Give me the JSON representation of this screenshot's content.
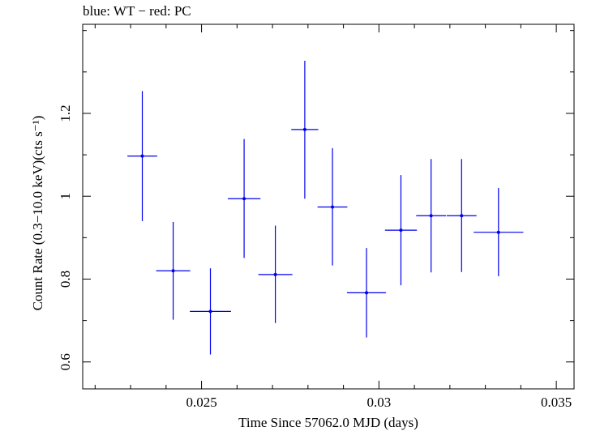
{
  "chart_data": {
    "type": "scatter",
    "title": "blue: WT − red: PC",
    "xlabel": "Time Since 57062.0 MJD (days)",
    "ylabel": "Count Rate (0.3−10.0 keV)(cts s⁻¹)",
    "xlim": [
      0.02165,
      0.0355
    ],
    "ylim": [
      0.535,
      1.415
    ],
    "x_major_ticks": [
      0.025,
      0.03,
      0.035
    ],
    "x_tick_labels": [
      "0.025",
      "0.03",
      "0.035"
    ],
    "y_major_ticks": [
      0.6,
      0.8,
      1.0,
      1.2
    ],
    "y_tick_labels": [
      "0.6",
      "0.8",
      "1",
      "1.2"
    ],
    "grid": false,
    "series": [
      {
        "color": "#0000ee",
        "points": [
          {
            "x": 0.02333,
            "xerr": 0.00042,
            "y": 1.097,
            "ylo": 0.94,
            "yhi": 1.254
          },
          {
            "x": 0.0242,
            "xerr": 0.00048,
            "y": 0.82,
            "ylo": 0.702,
            "yhi": 0.938
          },
          {
            "x": 0.02525,
            "xerr": 0.00058,
            "y": 0.722,
            "ylo": 0.618,
            "yhi": 0.826
          },
          {
            "x": 0.0262,
            "xerr": 0.00046,
            "y": 0.994,
            "ylo": 0.851,
            "yhi": 1.138
          },
          {
            "x": 0.02708,
            "xerr": 0.00048,
            "y": 0.811,
            "ylo": 0.694,
            "yhi": 0.929
          },
          {
            "x": 0.02791,
            "xerr": 0.00038,
            "y": 1.161,
            "ylo": 0.994,
            "yhi": 1.327
          },
          {
            "x": 0.02869,
            "xerr": 0.00042,
            "y": 0.974,
            "ylo": 0.833,
            "yhi": 1.116
          },
          {
            "x": 0.02965,
            "xerr": 0.00055,
            "y": 0.767,
            "ylo": 0.659,
            "yhi": 0.875
          },
          {
            "x": 0.03062,
            "xerr": 0.00045,
            "y": 0.918,
            "ylo": 0.785,
            "yhi": 1.051
          },
          {
            "x": 0.03147,
            "xerr": 0.00042,
            "y": 0.953,
            "ylo": 0.816,
            "yhi": 1.09
          },
          {
            "x": 0.03233,
            "xerr": 0.00042,
            "y": 0.953,
            "ylo": 0.817,
            "yhi": 1.09
          },
          {
            "x": 0.03337,
            "xerr": 0.0007,
            "y": 0.913,
            "ylo": 0.807,
            "yhi": 1.02
          }
        ]
      }
    ]
  }
}
